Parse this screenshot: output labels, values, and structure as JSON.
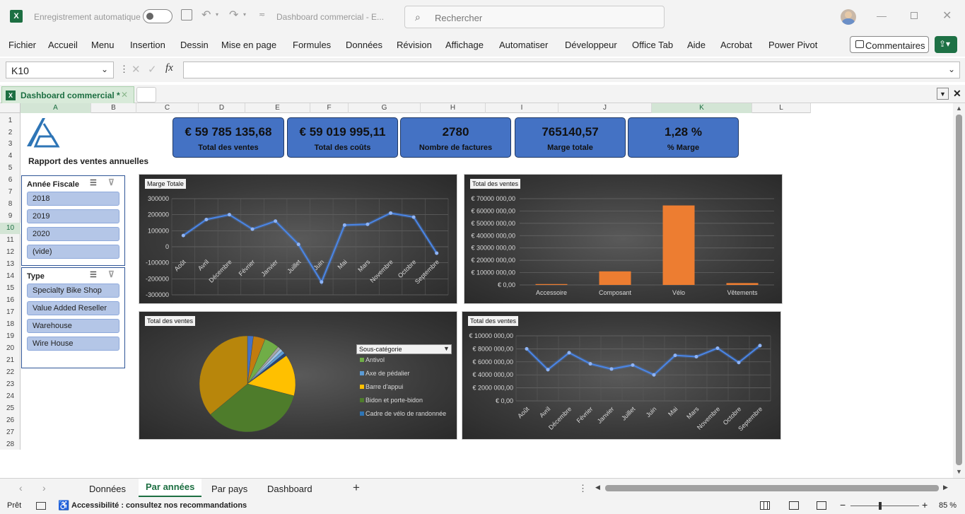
{
  "titlebar": {
    "autosave_label": "Enregistrement automatique",
    "doc_title": "Dashboard commercial  -  E...",
    "search_placeholder": "Rechercher"
  },
  "menu": {
    "items": [
      "Fichier",
      "Accueil",
      "Menu",
      "Insertion",
      "Dessin",
      "Mise en page",
      "Formules",
      "Données",
      "Révision",
      "Affichage",
      "Automatiser",
      "Développeur",
      "Office Tab",
      "Aide",
      "Acrobat",
      "Power Pivot"
    ],
    "comments_label": "Commentaires"
  },
  "formula": {
    "namebox": "K10",
    "fx": "fx",
    "value": ""
  },
  "workbook_tab": {
    "label": "Dashboard commercial *"
  },
  "columns": [
    "A",
    "B",
    "C",
    "D",
    "E",
    "F",
    "G",
    "H",
    "I",
    "J",
    "K",
    "L"
  ],
  "rows": [
    "1",
    "2",
    "3",
    "4",
    "5",
    "6",
    "7",
    "8",
    "9",
    "10",
    "11",
    "12",
    "13",
    "14",
    "15",
    "16",
    "17",
    "18",
    "19",
    "20",
    "21",
    "22",
    "23",
    "24",
    "25",
    "26",
    "27",
    "28"
  ],
  "report_title": "Rapport des ventes annuelles",
  "kpis": [
    {
      "value": "€ 59 785 135,68",
      "label": "Total des ventes"
    },
    {
      "value": "€ 59 019 995,11",
      "label": "Total des coûts"
    },
    {
      "value": "2780",
      "label": "Nombre de factures"
    },
    {
      "value": "765140,57",
      "label": "Marge totale"
    },
    {
      "value": "1,28 %",
      "label": "% Marge"
    }
  ],
  "slicer_year": {
    "title": "Année Fiscale",
    "items": [
      "2018",
      "2019",
      "2020",
      "(vide)"
    ]
  },
  "slicer_type": {
    "title": "Type",
    "items": [
      "Specialty Bike Shop",
      "Value Added Reseller",
      "Warehouse",
      "Wire House"
    ]
  },
  "chart_data": [
    {
      "type": "line",
      "title": "Marge Totale",
      "categories": [
        "Août",
        "Avril",
        "Décembre",
        "Février",
        "Janvier",
        "Juillet",
        "Juin",
        "Mai",
        "Mars",
        "Novembre",
        "Octobre",
        "Septembre"
      ],
      "values": [
        70000,
        170000,
        200000,
        110000,
        160000,
        15000,
        -220000,
        135000,
        140000,
        210000,
        185000,
        -40000
      ],
      "ylim": [
        -300000,
        300000
      ],
      "yticks": [
        "300000",
        "200000",
        "100000",
        "0",
        "-100000",
        "-200000",
        "-300000"
      ],
      "grid": true,
      "color": "#4a86e8"
    },
    {
      "type": "bar",
      "title": "Total des ventes",
      "categories": [
        "Accessoire",
        "Composant",
        "Vélo",
        "Vêtements"
      ],
      "values": [
        700000,
        11000000,
        64500000,
        1500000
      ],
      "ylim": [
        0,
        70000000
      ],
      "yticks": [
        "€ 70000 000,00",
        "€ 60000 000,00",
        "€ 50000 000,00",
        "€ 40000 000,00",
        "€ 30000 000,00",
        "€ 20000 000,00",
        "€ 10000 000,00",
        "€  0,00"
      ],
      "grid": true,
      "color": "#ed7d31"
    },
    {
      "type": "pie",
      "title": "Total des ventes",
      "legend_title": "Sous-catégorie",
      "legend": [
        {
          "name": "Antivol",
          "color": "#70ad47"
        },
        {
          "name": "Axe de pédalier",
          "color": "#5b9bd5"
        },
        {
          "name": "Barre d'appui",
          "color": "#ffc000"
        },
        {
          "name": "Bidon et porte-bidon",
          "color": "#4e7c2b"
        },
        {
          "name": "Cadre de vélo de randonnée",
          "color": "#2e75b6"
        }
      ],
      "slices": [
        {
          "value": 2,
          "color": "#4472c4"
        },
        {
          "value": 4,
          "color": "#c27c0e"
        },
        {
          "value": 5,
          "color": "#70ad47"
        },
        {
          "value": 1,
          "color": "#a5a5a5"
        },
        {
          "value": 1,
          "color": "#9dc3e6"
        },
        {
          "value": 1,
          "color": "#5b9bd5"
        },
        {
          "value": 1,
          "color": "#264478"
        },
        {
          "value": 14,
          "color": "#ffc000"
        },
        {
          "value": 35,
          "color": "#4e7c2b"
        },
        {
          "value": 36,
          "color": "#b8860b"
        }
      ]
    },
    {
      "type": "line",
      "title": "Total des ventes",
      "categories": [
        "Août",
        "Avril",
        "Décembre",
        "Février",
        "Janvier",
        "Juillet",
        "Juin",
        "Mai",
        "Mars",
        "Novembre",
        "Octobre",
        "Septembre"
      ],
      "values": [
        8000000,
        4800000,
        7400000,
        5700000,
        4900000,
        5500000,
        4000000,
        7000000,
        6800000,
        8100000,
        5900000,
        8500000
      ],
      "ylim": [
        0,
        10000000
      ],
      "yticks": [
        "€ 10000 000,00",
        "€ 8000 000,00",
        "€ 6000 000,00",
        "€ 4000 000,00",
        "€ 2000 000,00",
        "€  0,00"
      ],
      "grid": true,
      "color": "#4a86e8"
    }
  ],
  "sheet_tabs": [
    "Données",
    "Par années",
    "Par pays",
    "Dashboard"
  ],
  "status": {
    "ready": "Prêt",
    "accessibility": "Accessibilité : consultez nos recommandations",
    "zoom": "85 %"
  }
}
